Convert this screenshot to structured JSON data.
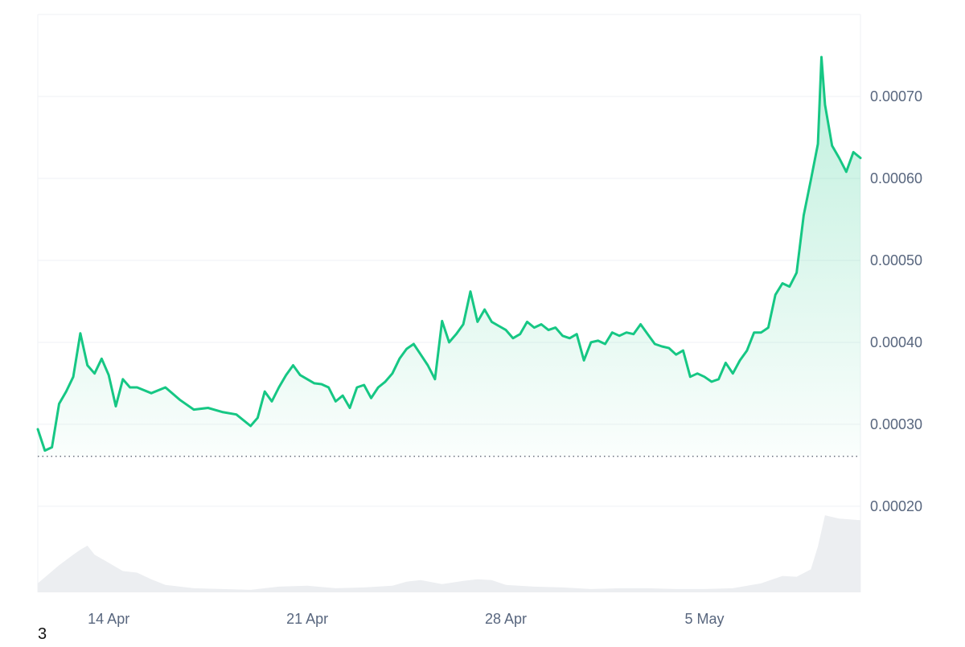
{
  "colors": {
    "line": "#16c784",
    "area_top": "#16c784",
    "volume": "#eceef1",
    "grid": "#eff2f5",
    "baseline_dots": "#6b7280",
    "axis_text": "#58667e"
  },
  "chart_data": {
    "type": "line",
    "x_axis": {
      "type": "date",
      "range": [
        "2024-04-11T12:00",
        "2024-05-10T12:00"
      ],
      "ticks": [
        {
          "x": "2024-04-14",
          "label": "14 Apr"
        },
        {
          "x": "2024-04-21",
          "label": "21 Apr"
        },
        {
          "x": "2024-04-28",
          "label": "28 Apr"
        },
        {
          "x": "2024-05-05",
          "label": "5 May"
        }
      ]
    },
    "y_axis": {
      "range": [
        9.5e-05,
        0.0008
      ],
      "position": "right",
      "ticks": [
        {
          "value": 0.0002,
          "label": "0.00020"
        },
        {
          "value": 0.0003,
          "label": "0.00030"
        },
        {
          "value": 0.0004,
          "label": "0.00040"
        },
        {
          "value": 0.0005,
          "label": "0.00050"
        },
        {
          "value": 0.0006,
          "label": "0.00060"
        },
        {
          "value": 0.0007,
          "label": "0.00070"
        }
      ]
    },
    "grid": true,
    "baseline": {
      "value": 0.000261,
      "style": "dotted"
    },
    "series": [
      {
        "kind": "price",
        "style": "line with gradient area",
        "points": [
          [
            "2024-04-11T12:00",
            0.000294
          ],
          [
            "2024-04-11T18:00",
            0.000268
          ],
          [
            "2024-04-12T00:00",
            0.000272
          ],
          [
            "2024-04-12T06:00",
            0.000325
          ],
          [
            "2024-04-12T12:00",
            0.00034
          ],
          [
            "2024-04-12T18:00",
            0.000358
          ],
          [
            "2024-04-13T00:00",
            0.000411
          ],
          [
            "2024-04-13T06:00",
            0.000372
          ],
          [
            "2024-04-13T12:00",
            0.000362
          ],
          [
            "2024-04-13T18:00",
            0.00038
          ],
          [
            "2024-04-14T00:00",
            0.00036
          ],
          [
            "2024-04-14T06:00",
            0.000322
          ],
          [
            "2024-04-14T12:00",
            0.000355
          ],
          [
            "2024-04-14T18:00",
            0.000345
          ],
          [
            "2024-04-15T00:00",
            0.000345
          ],
          [
            "2024-04-15T12:00",
            0.000338
          ],
          [
            "2024-04-16T00:00",
            0.000345
          ],
          [
            "2024-04-16T12:00",
            0.00033
          ],
          [
            "2024-04-17T00:00",
            0.000318
          ],
          [
            "2024-04-17T12:00",
            0.00032
          ],
          [
            "2024-04-18T00:00",
            0.000315
          ],
          [
            "2024-04-18T12:00",
            0.000312
          ],
          [
            "2024-04-19T00:00",
            0.000298
          ],
          [
            "2024-04-19T06:00",
            0.000308
          ],
          [
            "2024-04-19T12:00",
            0.00034
          ],
          [
            "2024-04-19T18:00",
            0.000328
          ],
          [
            "2024-04-20T00:00",
            0.000345
          ],
          [
            "2024-04-20T06:00",
            0.00036
          ],
          [
            "2024-04-20T12:00",
            0.000372
          ],
          [
            "2024-04-20T18:00",
            0.00036
          ],
          [
            "2024-04-21T00:00",
            0.000355
          ],
          [
            "2024-04-21T06:00",
            0.00035
          ],
          [
            "2024-04-21T12:00",
            0.000349
          ],
          [
            "2024-04-21T18:00",
            0.000345
          ],
          [
            "2024-04-22T00:00",
            0.000328
          ],
          [
            "2024-04-22T06:00",
            0.000335
          ],
          [
            "2024-04-22T12:00",
            0.00032
          ],
          [
            "2024-04-22T18:00",
            0.000345
          ],
          [
            "2024-04-23T00:00",
            0.000348
          ],
          [
            "2024-04-23T06:00",
            0.000332
          ],
          [
            "2024-04-23T12:00",
            0.000345
          ],
          [
            "2024-04-23T18:00",
            0.000352
          ],
          [
            "2024-04-24T00:00",
            0.000362
          ],
          [
            "2024-04-24T06:00",
            0.00038
          ],
          [
            "2024-04-24T12:00",
            0.000392
          ],
          [
            "2024-04-24T18:00",
            0.000398
          ],
          [
            "2024-04-25T00:00",
            0.000385
          ],
          [
            "2024-04-25T06:00",
            0.000372
          ],
          [
            "2024-04-25T12:00",
            0.000355
          ],
          [
            "2024-04-25T18:00",
            0.000426
          ],
          [
            "2024-04-26T00:00",
            0.0004
          ],
          [
            "2024-04-26T06:00",
            0.00041
          ],
          [
            "2024-04-26T12:00",
            0.000422
          ],
          [
            "2024-04-26T18:00",
            0.000462
          ],
          [
            "2024-04-27T00:00",
            0.000425
          ],
          [
            "2024-04-27T06:00",
            0.00044
          ],
          [
            "2024-04-27T12:00",
            0.000425
          ],
          [
            "2024-04-27T18:00",
            0.00042
          ],
          [
            "2024-04-28T00:00",
            0.000415
          ],
          [
            "2024-04-28T06:00",
            0.000405
          ],
          [
            "2024-04-28T12:00",
            0.00041
          ],
          [
            "2024-04-28T18:00",
            0.000425
          ],
          [
            "2024-04-29T00:00",
            0.000418
          ],
          [
            "2024-04-29T06:00",
            0.000422
          ],
          [
            "2024-04-29T12:00",
            0.000415
          ],
          [
            "2024-04-29T18:00",
            0.000418
          ],
          [
            "2024-04-30T00:00",
            0.000408
          ],
          [
            "2024-04-30T06:00",
            0.000405
          ],
          [
            "2024-04-30T12:00",
            0.00041
          ],
          [
            "2024-04-30T18:00",
            0.000378
          ],
          [
            "2024-05-01T00:00",
            0.0004
          ],
          [
            "2024-05-01T06:00",
            0.000402
          ],
          [
            "2024-05-01T12:00",
            0.000398
          ],
          [
            "2024-05-01T18:00",
            0.000412
          ],
          [
            "2024-05-02T00:00",
            0.000408
          ],
          [
            "2024-05-02T06:00",
            0.000412
          ],
          [
            "2024-05-02T12:00",
            0.00041
          ],
          [
            "2024-05-02T18:00",
            0.000422
          ],
          [
            "2024-05-03T00:00",
            0.00041
          ],
          [
            "2024-05-03T06:00",
            0.000398
          ],
          [
            "2024-05-03T12:00",
            0.000395
          ],
          [
            "2024-05-03T18:00",
            0.000393
          ],
          [
            "2024-05-04T00:00",
            0.000385
          ],
          [
            "2024-05-04T06:00",
            0.00039
          ],
          [
            "2024-05-04T12:00",
            0.000358
          ],
          [
            "2024-05-04T18:00",
            0.000362
          ],
          [
            "2024-05-05T00:00",
            0.000358
          ],
          [
            "2024-05-05T06:00",
            0.000352
          ],
          [
            "2024-05-05T12:00",
            0.000355
          ],
          [
            "2024-05-05T18:00",
            0.000375
          ],
          [
            "2024-05-06T00:00",
            0.000362
          ],
          [
            "2024-05-06T06:00",
            0.000378
          ],
          [
            "2024-05-06T12:00",
            0.00039
          ],
          [
            "2024-05-06T18:00",
            0.000412
          ],
          [
            "2024-05-07T00:00",
            0.000412
          ],
          [
            "2024-05-07T06:00",
            0.000418
          ],
          [
            "2024-05-07T12:00",
            0.000458
          ],
          [
            "2024-05-07T18:00",
            0.000472
          ],
          [
            "2024-05-08T00:00",
            0.000468
          ],
          [
            "2024-05-08T06:00",
            0.000485
          ],
          [
            "2024-05-08T12:00",
            0.000555
          ],
          [
            "2024-05-08T18:00",
            0.000598
          ],
          [
            "2024-05-09T00:00",
            0.000642
          ],
          [
            "2024-05-09T03:00",
            0.000748
          ],
          [
            "2024-05-09T06:00",
            0.00069
          ],
          [
            "2024-05-09T09:00",
            0.000665
          ],
          [
            "2024-05-09T12:00",
            0.00064
          ],
          [
            "2024-05-09T18:00",
            0.000625
          ],
          [
            "2024-05-10T00:00",
            0.000608
          ],
          [
            "2024-05-10T06:00",
            0.000632
          ],
          [
            "2024-05-10T12:00",
            0.000625
          ]
        ]
      },
      {
        "kind": "volume",
        "style": "filled area (no separate scale)",
        "points": [
          [
            "2024-04-11T12:00",
            0.11
          ],
          [
            "2024-04-12T06:00",
            0.33
          ],
          [
            "2024-04-12T18:00",
            0.46
          ],
          [
            "2024-04-13T00:00",
            0.52
          ],
          [
            "2024-04-13T06:00",
            0.57
          ],
          [
            "2024-04-13T12:00",
            0.46
          ],
          [
            "2024-04-14T00:00",
            0.36
          ],
          [
            "2024-04-14T12:00",
            0.26
          ],
          [
            "2024-04-15T00:00",
            0.24
          ],
          [
            "2024-04-15T12:00",
            0.16
          ],
          [
            "2024-04-16T00:00",
            0.09
          ],
          [
            "2024-04-17T00:00",
            0.05
          ],
          [
            "2024-04-18T00:00",
            0.04
          ],
          [
            "2024-04-19T00:00",
            0.03
          ],
          [
            "2024-04-20T00:00",
            0.07
          ],
          [
            "2024-04-21T00:00",
            0.08
          ],
          [
            "2024-04-22T00:00",
            0.05
          ],
          [
            "2024-04-23T00:00",
            0.06
          ],
          [
            "2024-04-24T00:00",
            0.08
          ],
          [
            "2024-04-24T12:00",
            0.13
          ],
          [
            "2024-04-25T00:00",
            0.15
          ],
          [
            "2024-04-25T18:00",
            0.1
          ],
          [
            "2024-04-26T12:00",
            0.14
          ],
          [
            "2024-04-27T00:00",
            0.16
          ],
          [
            "2024-04-27T12:00",
            0.15
          ],
          [
            "2024-04-28T00:00",
            0.09
          ],
          [
            "2024-04-29T00:00",
            0.07
          ],
          [
            "2024-04-30T00:00",
            0.06
          ],
          [
            "2024-05-01T00:00",
            0.04
          ],
          [
            "2024-05-02T00:00",
            0.05
          ],
          [
            "2024-05-03T00:00",
            0.05
          ],
          [
            "2024-05-04T00:00",
            0.04
          ],
          [
            "2024-05-05T00:00",
            0.04
          ],
          [
            "2024-05-06T00:00",
            0.05
          ],
          [
            "2024-05-07T00:00",
            0.11
          ],
          [
            "2024-05-07T18:00",
            0.2
          ],
          [
            "2024-05-08T06:00",
            0.19
          ],
          [
            "2024-05-08T18:00",
            0.28
          ],
          [
            "2024-05-09T00:00",
            0.56
          ],
          [
            "2024-05-09T06:00",
            0.94
          ],
          [
            "2024-05-09T18:00",
            0.9
          ],
          [
            "2024-05-10T12:00",
            0.88
          ]
        ]
      }
    ]
  },
  "footer_label": "3"
}
